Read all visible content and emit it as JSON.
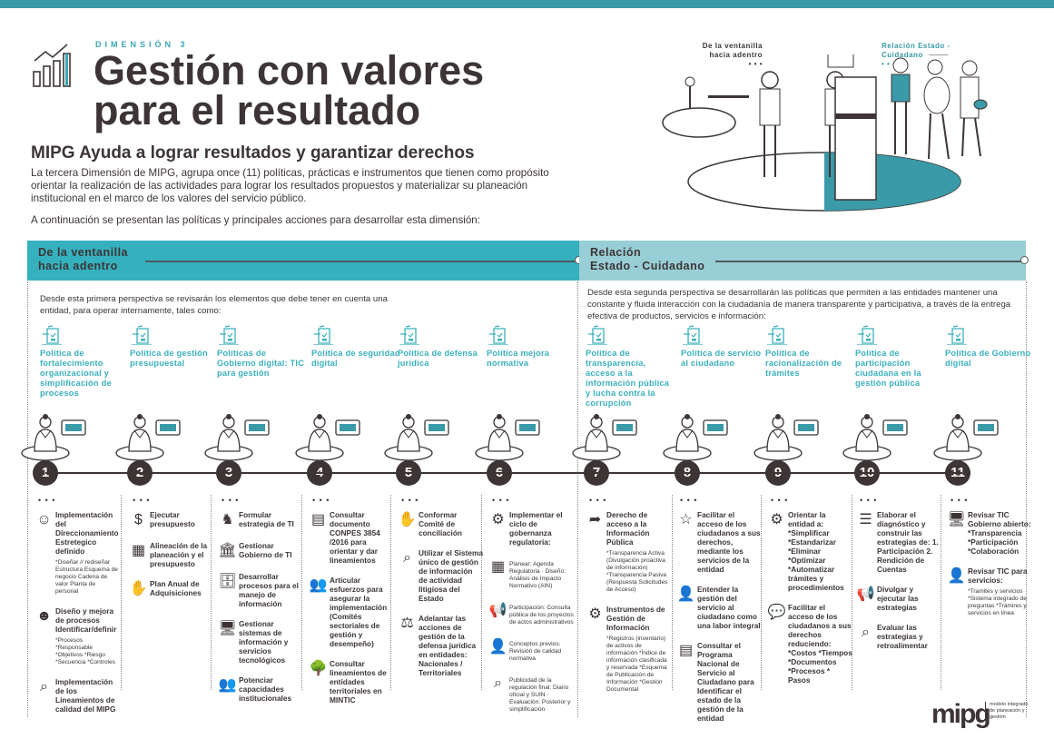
{
  "header": {
    "dimension": "DIMENSIÓN 3",
    "title_line1": "Gestión con valores",
    "title_line2": "para el resultado",
    "subtitle": "MIPG Ayuda a lograr resultados y garantizar derechos",
    "intro": "La tercera Dimensión de MIPG, agrupa once (11) políticas, prácticas e instrumentos que tienen como propósito orientar la realización de las actividades para lograr los resultados propuestos y materializar su planeación institucional en el marco de los valores del servicio público.",
    "intro2": "A continuación se presentan las políticas y principales acciones para desarrollar esta dimensión:"
  },
  "hero": {
    "left_label": "De la ventanilla hacia adentro",
    "right_label": "Relación Estado - Cuidadano",
    "dots": "• • •"
  },
  "colors": {
    "teal": "#3a9aa8",
    "teal_light": "#98ced5",
    "band_left": "#35b0be",
    "text": "#3d3535"
  },
  "perspectives": [
    {
      "title_line1": "De la ventanilla",
      "title_line2": "hacia adentro",
      "description": "Desde esta primera perspectiva se revisarán los elementos que debe tener en cuenta una entidad, para operar internamente, tales como:"
    },
    {
      "title_line1": "Relación",
      "title_line2": "Estado - Cuidadano",
      "description": "Desde esta segunda perspectiva se desarrollarán las políticas que permiten a las entidades mantener una constante y fluida interacción con la ciudadanía de manera transparente y participativa, a través de la entrega efectiva de productos, servicios e información:"
    }
  ],
  "columns": [
    {
      "number": "1",
      "policy": "Política de fortalecimiento organizacional y simplificación de procesos",
      "items": [
        {
          "icon": "head-gear-icon",
          "glyph": "☺",
          "title": "Implementación del Direccionamiento Estretegico definido",
          "details": "*Diseñar // rediseñar Estructura Esquema de negocio Cadena de valor Planta de personal"
        },
        {
          "icon": "people-process-icon",
          "glyph": "☻",
          "title": "Diseño y mejora de procesos Identificar/definir",
          "details": "*Procesos *Responsable *Objetivos *Riesgo *Secuencia *Controles"
        },
        {
          "icon": "quality-magnifier-icon",
          "glyph": "⌕",
          "title": "Implementación de los Lineamientos de calidad del MIPG",
          "details": ""
        }
      ]
    },
    {
      "number": "2",
      "policy": "Política de gestión presupuestal",
      "items": [
        {
          "icon": "dollar-check-icon",
          "glyph": "$",
          "title": "Ejecutar presupuesto",
          "details": ""
        },
        {
          "icon": "calendar-pencil-icon",
          "glyph": "▦",
          "title": "Alineación de la planeación y el presupuesto",
          "details": ""
        },
        {
          "icon": "handshake-chart-icon",
          "glyph": "✋",
          "title": "Plan Anual de Adquisiciones",
          "details": ""
        }
      ]
    },
    {
      "number": "3",
      "policy": "Políticas de Gobierno digital: TIC para gestión",
      "items": [
        {
          "icon": "network-chess-icon",
          "glyph": "♞",
          "title": "Formular estrategia de TI",
          "details": ""
        },
        {
          "icon": "government-building-icon",
          "glyph": "🏛",
          "title": "Gestionar Gobierno de TI",
          "details": ""
        },
        {
          "icon": "secure-files-icon",
          "glyph": "🗄",
          "title": "Desarrollar procesos para el manejo de información",
          "details": ""
        },
        {
          "icon": "monitor-org-chart-icon",
          "glyph": "🖥",
          "title": "Gestionar sistemas de información y servicios tecnológicos",
          "details": ""
        },
        {
          "icon": "team-training-icon",
          "glyph": "👥",
          "title": "Potenciar capacidades institucionales",
          "details": ""
        }
      ]
    },
    {
      "number": "4",
      "policy": "Política de seguridad digital",
      "items": [
        {
          "icon": "conpes-document-icon",
          "glyph": "▤",
          "title": "Consultar documento CONPES 3854 /2016 para orientar y dar lineamientos",
          "details": ""
        },
        {
          "icon": "committee-icon",
          "glyph": "👥",
          "title": "Articular esfuerzos para asegurar la implementación (Comités sectoriales de gestión y desempeño)",
          "details": ""
        },
        {
          "icon": "tree-territories-icon",
          "glyph": "🌳",
          "title": "Consultar lineamientos de entidades territoriales en MINTIC",
          "details": ""
        }
      ]
    },
    {
      "number": "5",
      "policy": "Política de defensa jurídica",
      "items": [
        {
          "icon": "handshake-star-icon",
          "glyph": "✋",
          "title": "Conformar Comité de conciliación",
          "details": ""
        },
        {
          "icon": "search-people-icon",
          "glyph": "⌕",
          "title": "Utilizar el Sistema único de gestión de información de actividad litigiosa del Estado",
          "details": ""
        },
        {
          "icon": "legal-defense-icon",
          "glyph": "⚖",
          "title": "Adelantar las acciones de gestión de la defensa jurídica en entidades: Nacionales / Territoriales",
          "details": ""
        }
      ]
    },
    {
      "number": "6",
      "policy": "Política mejora normativa",
      "items": [
        {
          "icon": "gears-icon",
          "glyph": "⚙",
          "title": "Implementar el ciclo de gobernanza regulatoria:",
          "details": ""
        },
        {
          "icon": "calendar-pencil-icon",
          "glyph": "▦",
          "title": "",
          "details": "Planear: Agenda Regulatoria · Diseño: Análisis de Impacto Normativo (AIN)"
        },
        {
          "icon": "megaphone-icon",
          "glyph": "📢",
          "title": "",
          "details": "Participación: Consulta pública de los proyectos de actos administrativos"
        },
        {
          "icon": "reviewer-icon",
          "glyph": "👤",
          "title": "",
          "details": "Conceptos previos: Revisión de calidad normativa"
        },
        {
          "icon": "chart-magnifier-icon",
          "glyph": "⌕",
          "title": "",
          "details": "Publicidad de la regulación final: Diario oficial y SUIN · Evaluación: Posterior y simplificación"
        }
      ]
    },
    {
      "number": "7",
      "policy": "Política de transparencia, acceso a la información pública y lucha contra la corrupción",
      "items": [
        {
          "icon": "document-arrow-icon",
          "glyph": "➦",
          "title": "Derecho de acceso a la Información Pública",
          "details": "*Transparencia Activa (Divulgación proactiva de información) *Transparencia Pasiva (Respuesta Solicitudes de Acceso)"
        },
        {
          "icon": "document-gear-icon",
          "glyph": "⚙",
          "title": "Instrumentos de Gestión de Información",
          "details": "*Registros (inventario) de activos de información *Índice de información clasificada y reservada *Esquema de Publicación de Información *Gestión Documental"
        }
      ]
    },
    {
      "number": "8",
      "policy": "Política de servicio al ciudadano",
      "items": [
        {
          "icon": "stars-thumbs-up-icon",
          "glyph": "☆",
          "title": "Facilitar el acceso de los ciudadanos a sus derechos, mediante los servicios de la entidad",
          "details": ""
        },
        {
          "icon": "service-agent-icon",
          "glyph": "👤",
          "title": "Entender la gestión del servicio al ciudadano como una labor integral",
          "details": ""
        },
        {
          "icon": "pnsc-document-icon",
          "glyph": "▤",
          "title": "Consultar el Programa Nacional de Servicio al Ciudadano para Identificar el estado de la gestión de la entidad",
          "details": ""
        }
      ]
    },
    {
      "number": "9",
      "policy": "Política de racionalización de trámites",
      "items": [
        {
          "icon": "gears-icon",
          "glyph": "⚙",
          "title": "Orientar la entidad a: *Simplificar *Estandarizar *Eliminar *Optimizar *Automatizar trámites y procedimientos",
          "details": ""
        },
        {
          "icon": "chat-document-icon",
          "glyph": "💬",
          "title": "Facilitar el acceso de los ciudadanos a sus derechos reduciendo: *Costos *Tiempos *Documentos *Procesos * Pasos",
          "details": ""
        }
      ]
    },
    {
      "number": "10",
      "policy": "Política de participación ciudadana en la gestión pública",
      "items": [
        {
          "icon": "checklist-pencil-icon",
          "glyph": "☰",
          "title": "Elaborar el diagnóstico y construir las estrategias de: 1. Participación 2. Rendición de Cuentas",
          "details": ""
        },
        {
          "icon": "megaphone-icon",
          "glyph": "📢",
          "title": "Divulgar y ejecutar las estrategias",
          "details": ""
        },
        {
          "icon": "evaluate-magnifier-icon",
          "glyph": "⌕",
          "title": "Evaluar las estrategias y retroalimentar",
          "details": ""
        }
      ]
    },
    {
      "number": "11",
      "policy": "Política de Gobierno digital",
      "items": [
        {
          "icon": "tic-monitor-icon",
          "glyph": "🖥",
          "title": "Revisar TIC Gobierno abierto: *Transparencia *Participación *Colaboración",
          "details": ""
        },
        {
          "icon": "citizen-services-icon",
          "glyph": "👤",
          "title": "Revisar TIC para servicios:",
          "details": "*Tramites y servicios *Sistema integrado de preguntas *Trámires y servicios en línea"
        }
      ]
    }
  ],
  "logo": {
    "text": "mipg",
    "tagline": "modelo integrado de planeación y gestión"
  }
}
